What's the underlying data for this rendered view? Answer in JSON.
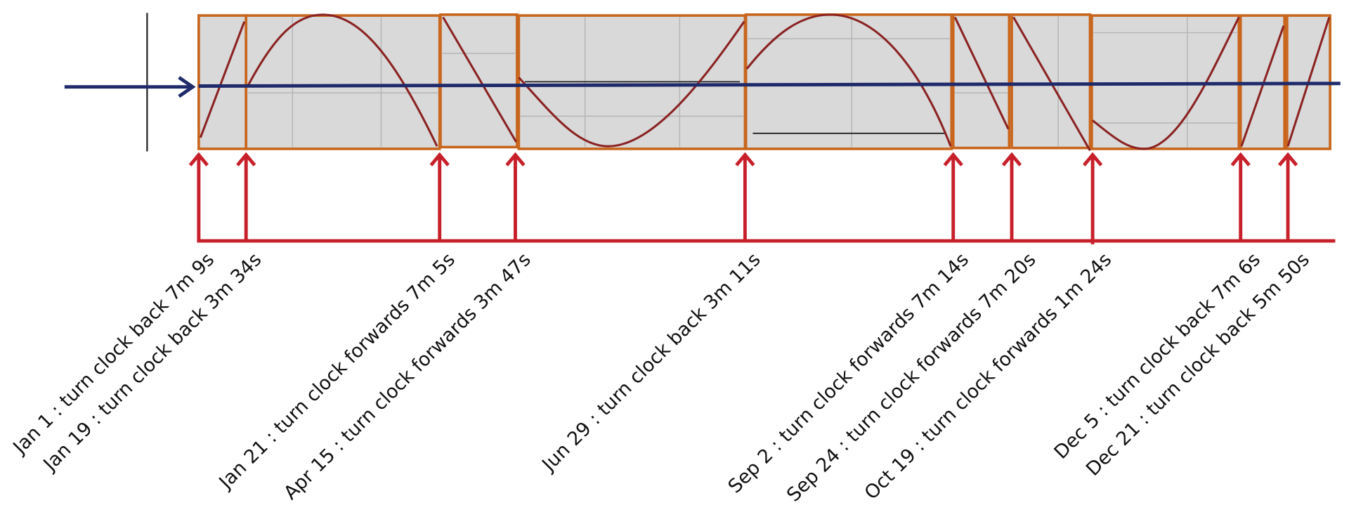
{
  "events": [
    "Jan 1 : turn clock back 7m 9s",
    "Jan 19 : turn clock back 3m 34s",
    "Jan 21 : turn clock forwards 7m 5s",
    "Apr 15 : turn clock forwards 3m 47s",
    "Jun 29 : turn clock back 3m 11s",
    "Sep 2 : turn clock forwards 7m 14s",
    "Sep 24 : turn clock forwards 7m 20s",
    "Oct 19 : turn clock forwards 1m 24s",
    "Dec 5 : turn clock back 7m 6s",
    "Dec 21 : turn clock back 5m 50s"
  ]
}
